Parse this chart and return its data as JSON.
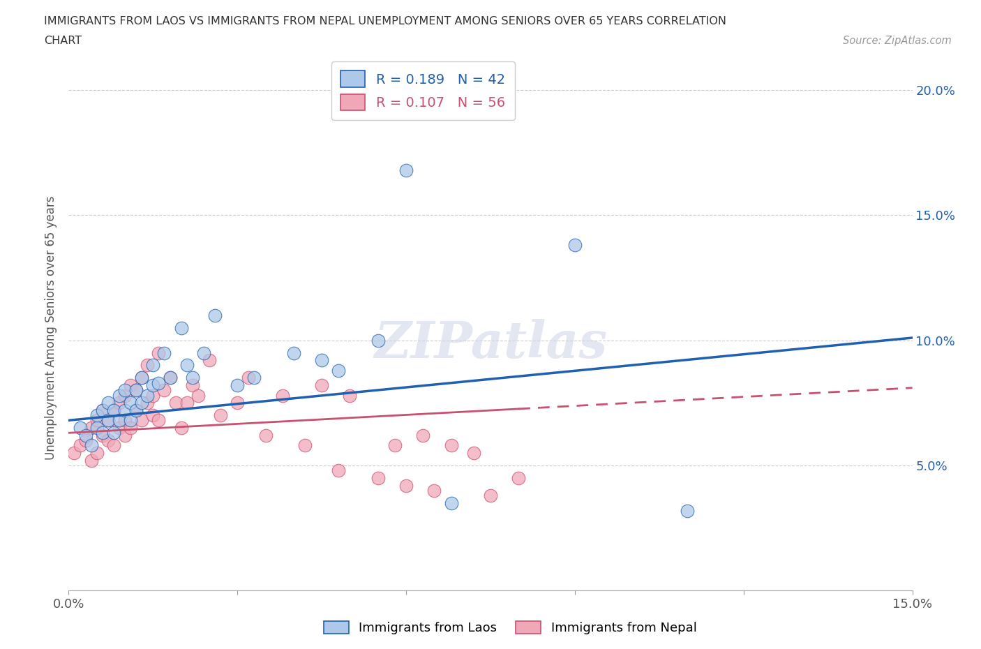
{
  "title_line1": "IMMIGRANTS FROM LAOS VS IMMIGRANTS FROM NEPAL UNEMPLOYMENT AMONG SENIORS OVER 65 YEARS CORRELATION",
  "title_line2": "CHART",
  "source": "Source: ZipAtlas.com",
  "ylabel": "Unemployment Among Seniors over 65 years",
  "xlim": [
    0.0,
    0.15
  ],
  "ylim": [
    0.0,
    0.21
  ],
  "yticks": [
    0.0,
    0.05,
    0.1,
    0.15,
    0.2
  ],
  "yticklabels": [
    "",
    "5.0%",
    "10.0%",
    "15.0%",
    "20.0%"
  ],
  "laos_R": 0.189,
  "laos_N": 42,
  "nepal_R": 0.107,
  "nepal_N": 56,
  "laos_color": "#adc8e8",
  "nepal_color": "#f0a8b8",
  "laos_line_color": "#2060b0",
  "nepal_line_color": "#c85070",
  "laos_x": [
    0.002,
    0.003,
    0.004,
    0.005,
    0.005,
    0.006,
    0.006,
    0.007,
    0.007,
    0.008,
    0.008,
    0.009,
    0.009,
    0.01,
    0.01,
    0.011,
    0.011,
    0.012,
    0.012,
    0.013,
    0.013,
    0.014,
    0.015,
    0.015,
    0.016,
    0.017,
    0.018,
    0.02,
    0.021,
    0.022,
    0.024,
    0.026,
    0.03,
    0.033,
    0.04,
    0.045,
    0.048,
    0.055,
    0.06,
    0.068,
    0.09,
    0.11
  ],
  "laos_y": [
    0.065,
    0.062,
    0.058,
    0.065,
    0.07,
    0.063,
    0.072,
    0.068,
    0.075,
    0.063,
    0.072,
    0.068,
    0.078,
    0.072,
    0.08,
    0.068,
    0.075,
    0.072,
    0.08,
    0.075,
    0.085,
    0.078,
    0.082,
    0.09,
    0.083,
    0.095,
    0.085,
    0.105,
    0.09,
    0.085,
    0.095,
    0.11,
    0.082,
    0.085,
    0.095,
    0.092,
    0.088,
    0.1,
    0.168,
    0.035,
    0.138,
    0.032
  ],
  "nepal_x": [
    0.001,
    0.002,
    0.003,
    0.004,
    0.004,
    0.005,
    0.005,
    0.006,
    0.006,
    0.007,
    0.007,
    0.008,
    0.008,
    0.009,
    0.009,
    0.01,
    0.01,
    0.01,
    0.011,
    0.011,
    0.012,
    0.012,
    0.013,
    0.013,
    0.014,
    0.014,
    0.015,
    0.015,
    0.016,
    0.016,
    0.017,
    0.018,
    0.019,
    0.02,
    0.021,
    0.022,
    0.023,
    0.025,
    0.027,
    0.03,
    0.032,
    0.035,
    0.038,
    0.042,
    0.045,
    0.048,
    0.05,
    0.055,
    0.058,
    0.06,
    0.063,
    0.065,
    0.068,
    0.072,
    0.075,
    0.08
  ],
  "nepal_y": [
    0.055,
    0.058,
    0.06,
    0.052,
    0.065,
    0.055,
    0.068,
    0.062,
    0.072,
    0.06,
    0.068,
    0.058,
    0.072,
    0.065,
    0.075,
    0.062,
    0.068,
    0.078,
    0.065,
    0.082,
    0.072,
    0.08,
    0.068,
    0.085,
    0.075,
    0.09,
    0.07,
    0.078,
    0.095,
    0.068,
    0.08,
    0.085,
    0.075,
    0.065,
    0.075,
    0.082,
    0.078,
    0.092,
    0.07,
    0.075,
    0.085,
    0.062,
    0.078,
    0.058,
    0.082,
    0.048,
    0.078,
    0.045,
    0.058,
    0.042,
    0.062,
    0.04,
    0.058,
    0.055,
    0.038,
    0.045
  ],
  "background_color": "#ffffff",
  "watermark": "ZIPatlas",
  "legend_laos_label": "R = 0.189   N = 42",
  "legend_nepal_label": "R = 0.107   N = 56",
  "laos_line_intercept": 0.068,
  "laos_line_slope": 0.22,
  "nepal_line_intercept": 0.063,
  "nepal_line_slope": 0.12
}
